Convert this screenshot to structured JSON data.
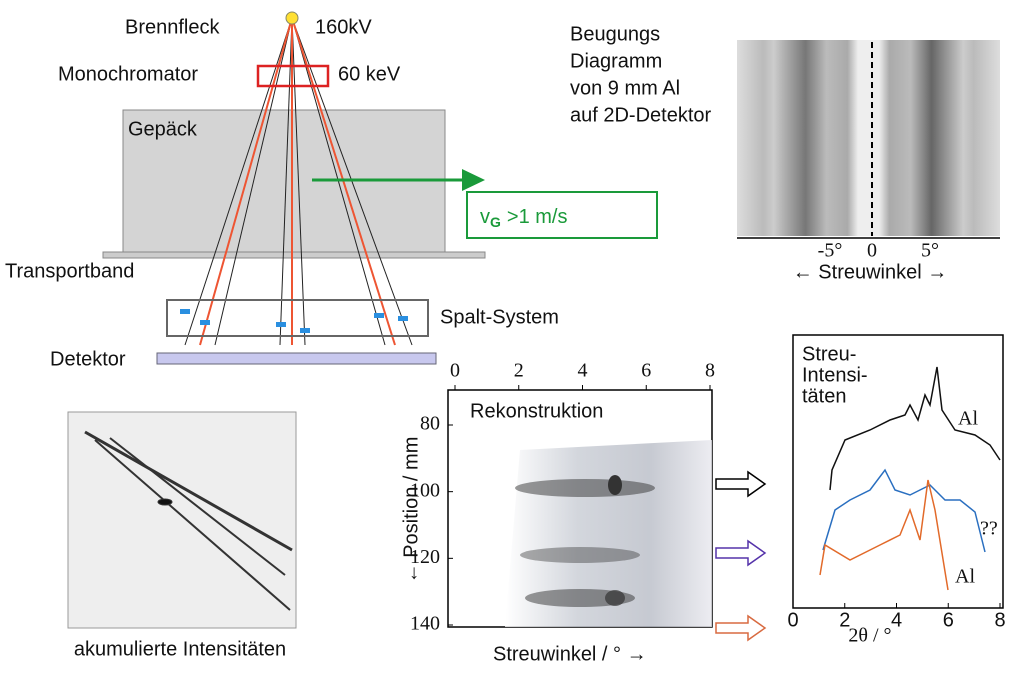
{
  "source": {
    "label": "Brennfleck",
    "voltage": "160kV"
  },
  "monochromator": {
    "label": "Monochromator",
    "energy": "60 keV"
  },
  "luggage": "Gepäck",
  "speed": {
    "symbol": "v",
    "subscript": "G",
    "value": ">1 m/s"
  },
  "belt": "Transportband",
  "slits": "Spalt-System",
  "detector": "Detektor",
  "diffraction": {
    "caption": [
      "Beugungs",
      "Diagramm",
      "von 9 mm Al",
      "auf 2D-Detektor"
    ],
    "ticks": [
      "-5°",
      "0",
      "5°"
    ],
    "axis_label": "← Streuwinkel →"
  },
  "accumulated": {
    "caption": "akumulierte Intensitäten"
  },
  "reconstruction": {
    "title": "Rekonstruktion",
    "xticks": [
      0,
      2,
      4,
      6,
      8
    ],
    "yticks": [
      80,
      100,
      120,
      140
    ],
    "x_label": "Streuwinkel / ° →",
    "y_label": "← Position / mm"
  },
  "intensities": {
    "title": [
      "Streu-",
      "Intensi-",
      "täten"
    ],
    "labels": [
      "Al",
      "??",
      "Al"
    ],
    "xticks": [
      0,
      2,
      4,
      6,
      8
    ],
    "x_label": "2θ / °"
  }
}
